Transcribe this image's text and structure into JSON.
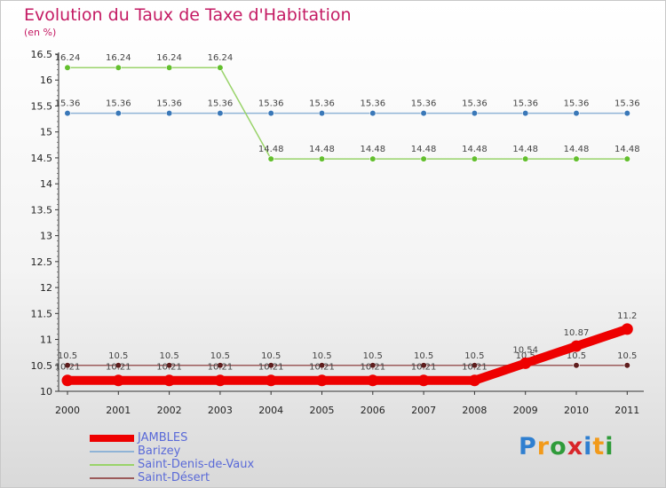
{
  "header": {
    "title": "Evolution du Taux de Taxe d'Habitation",
    "subtitle": "(en %)"
  },
  "brand": {
    "letters": [
      {
        "ch": "P",
        "color": "#2f7fd0"
      },
      {
        "ch": "r",
        "color": "#f29a1a"
      },
      {
        "ch": "o",
        "color": "#2f9b3a"
      },
      {
        "ch": "x",
        "color": "#d8262a"
      },
      {
        "ch": "i",
        "color": "#2f7fd0"
      },
      {
        "ch": "t",
        "color": "#f29a1a"
      },
      {
        "ch": "i",
        "color": "#2f9b3a"
      }
    ]
  },
  "chart_data": {
    "type": "line",
    "title": "Evolution du Taux de Taxe d'Habitation",
    "subtitle": "(en %)",
    "xlabel": "",
    "ylabel": "",
    "x": [
      "2000",
      "2001",
      "2002",
      "2003",
      "2004",
      "2005",
      "2006",
      "2007",
      "2008",
      "2009",
      "2010",
      "2011"
    ],
    "ylim": [
      10,
      16.5
    ],
    "yticks": [
      "10",
      "10.5",
      "11",
      "11.5",
      "12",
      "12.5",
      "13",
      "13.5",
      "14",
      "14.5",
      "15",
      "15.5",
      "16",
      "16.5"
    ],
    "legend_position": "bottom-left",
    "series": [
      {
        "name": "JAMBLES",
        "color": "#ee0000",
        "emphasis": true,
        "values": [
          10.21,
          10.21,
          10.21,
          10.21,
          10.21,
          10.21,
          10.21,
          10.21,
          10.21,
          10.54,
          10.87,
          11.2
        ],
        "labels": [
          "10.21",
          "10.21",
          "10.21",
          "10.21",
          "10.21",
          "10.21",
          "10.21",
          "10.21",
          "10.21",
          "10.54",
          "10.87",
          "11.2"
        ]
      },
      {
        "name": "Barizey",
        "color": "#8fb3d6",
        "marker": "#3a78b8",
        "values": [
          15.36,
          15.36,
          15.36,
          15.36,
          15.36,
          15.36,
          15.36,
          15.36,
          15.36,
          15.36,
          15.36,
          15.36
        ],
        "labels": [
          "15.36",
          "15.36",
          "15.36",
          "15.36",
          "15.36",
          "15.36",
          "15.36",
          "15.36",
          "15.36",
          "15.36",
          "15.36",
          "15.36"
        ]
      },
      {
        "name": "Saint-Denis-de-Vaux",
        "color": "#99d36a",
        "marker": "#63bf2e",
        "values": [
          16.24,
          16.24,
          16.24,
          16.24,
          14.48,
          14.48,
          14.48,
          14.48,
          14.48,
          14.48,
          14.48,
          14.48
        ],
        "labels": [
          "16.24",
          "16.24",
          "16.24",
          "16.24",
          "14.48",
          "14.48",
          "14.48",
          "14.48",
          "14.48",
          "14.48",
          "14.48",
          "14.48"
        ]
      },
      {
        "name": "Saint-Désert",
        "color": "#9b5a5a",
        "marker": "#5e1d1d",
        "values": [
          10.5,
          10.5,
          10.5,
          10.5,
          10.5,
          10.5,
          10.5,
          10.5,
          10.5,
          10.5,
          10.5,
          10.5
        ],
        "labels": [
          "10.5",
          "10.5",
          "10.5",
          "10.5",
          "10.5",
          "10.5",
          "10.5",
          "10.5",
          "10.5",
          "10.5",
          "10.5",
          "10.5"
        ]
      }
    ]
  }
}
